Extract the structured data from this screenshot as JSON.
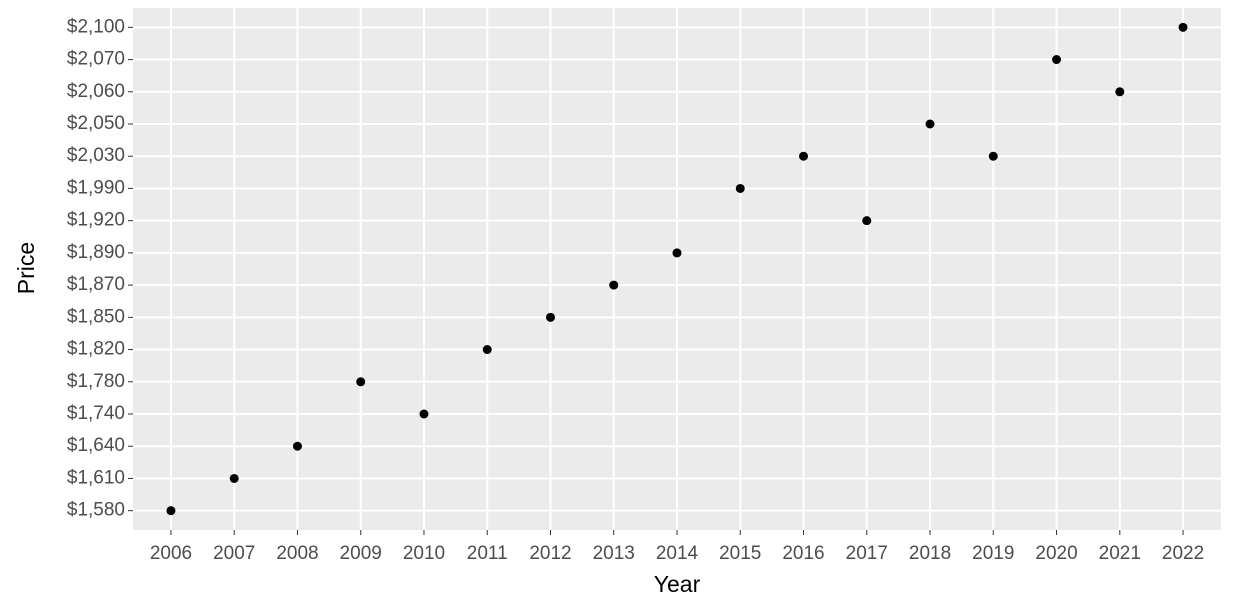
{
  "chart_data": {
    "type": "scatter",
    "x_label": "Year",
    "y_label": "Price",
    "categories": [
      "2006",
      "2007",
      "2008",
      "2009",
      "2010",
      "2011",
      "2012",
      "2013",
      "2014",
      "2015",
      "2016",
      "2017",
      "2018",
      "2019",
      "2020",
      "2021",
      "2022"
    ],
    "values": [
      1580,
      1610,
      1640,
      1780,
      1740,
      1820,
      1850,
      1870,
      1890,
      1990,
      2030,
      1920,
      2050,
      2030,
      2070,
      2060,
      2100
    ],
    "y_scale": "discrete",
    "yticks": [
      {
        "value": 1580,
        "label": "$1,580"
      },
      {
        "value": 1610,
        "label": "$1,610"
      },
      {
        "value": 1640,
        "label": "$1,640"
      },
      {
        "value": 1740,
        "label": "$1,740"
      },
      {
        "value": 1780,
        "label": "$1,780"
      },
      {
        "value": 1820,
        "label": "$1,820"
      },
      {
        "value": 1850,
        "label": "$1,850"
      },
      {
        "value": 1870,
        "label": "$1,870"
      },
      {
        "value": 1890,
        "label": "$1,890"
      },
      {
        "value": 1920,
        "label": "$1,920"
      },
      {
        "value": 1990,
        "label": "$1,990"
      },
      {
        "value": 2030,
        "label": "$2,030"
      },
      {
        "value": 2050,
        "label": "$2,050"
      },
      {
        "value": 2060,
        "label": "$2,060"
      },
      {
        "value": 2070,
        "label": "$2,070"
      },
      {
        "value": 2100,
        "label": "$2,100"
      }
    ],
    "color": "#000000",
    "grid": true
  }
}
